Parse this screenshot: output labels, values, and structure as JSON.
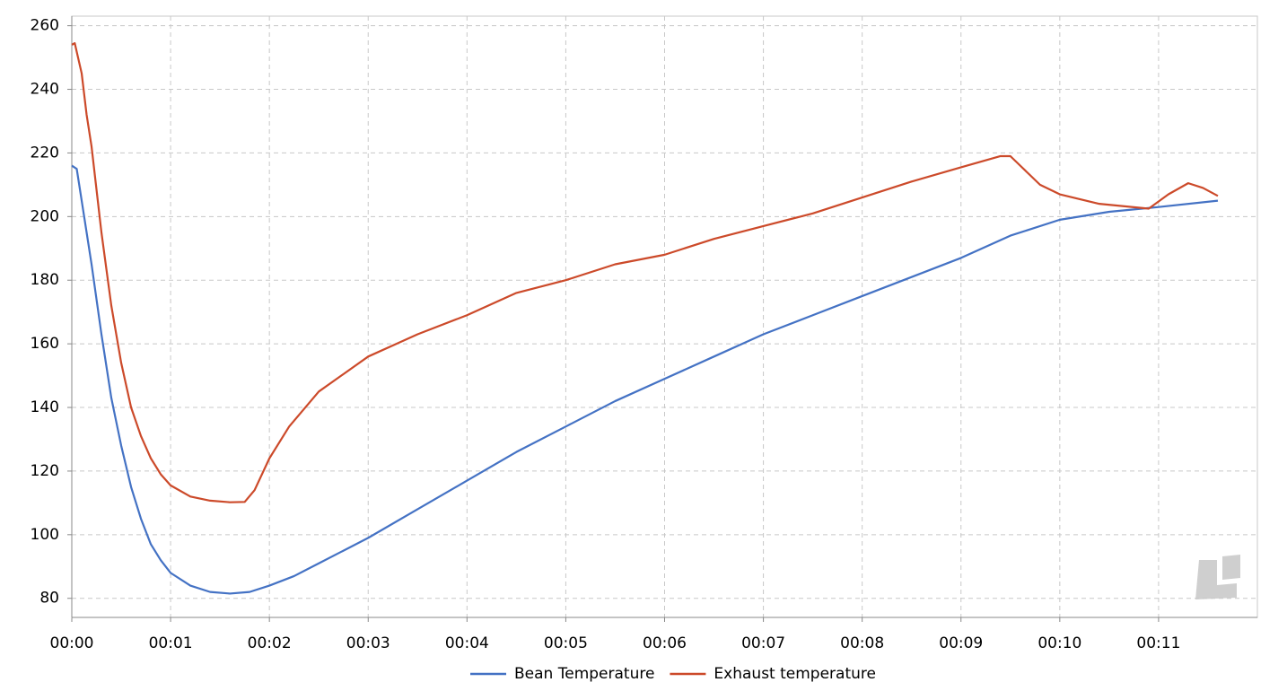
{
  "chart_data": {
    "type": "line",
    "xlim": [
      0,
      12
    ],
    "ylim": [
      74,
      263
    ],
    "xticks": [
      {
        "value": 0,
        "label": "00:00"
      },
      {
        "value": 1,
        "label": "00:01"
      },
      {
        "value": 2,
        "label": "00:02"
      },
      {
        "value": 3,
        "label": "00:03"
      },
      {
        "value": 4,
        "label": "00:04"
      },
      {
        "value": 5,
        "label": "00:05"
      },
      {
        "value": 6,
        "label": "00:06"
      },
      {
        "value": 7,
        "label": "00:07"
      },
      {
        "value": 8,
        "label": "00:08"
      },
      {
        "value": 9,
        "label": "00:09"
      },
      {
        "value": 10,
        "label": "00:10"
      },
      {
        "value": 11,
        "label": "00:11"
      }
    ],
    "yticks": [
      80,
      100,
      120,
      140,
      160,
      180,
      200,
      220,
      240,
      260
    ],
    "grid": true,
    "legend": "bottom",
    "series": [
      {
        "name": "Bean Temperature",
        "color": "#4472c4",
        "x": [
          0,
          0.05,
          0.1,
          0.2,
          0.3,
          0.4,
          0.5,
          0.6,
          0.7,
          0.8,
          0.9,
          1.0,
          1.2,
          1.4,
          1.6,
          1.8,
          2.0,
          2.25,
          2.5,
          3.0,
          3.5,
          4.0,
          4.5,
          5.0,
          5.5,
          6.0,
          6.5,
          7.0,
          7.5,
          8.0,
          8.5,
          9.0,
          9.5,
          10.0,
          10.5,
          11.0,
          11.6
        ],
        "values": [
          216,
          215,
          205,
          185,
          163,
          143,
          128,
          115,
          105,
          97,
          92,
          88,
          84,
          82,
          81.5,
          82,
          84,
          87,
          91,
          99,
          108,
          117,
          126,
          134,
          142,
          149,
          156,
          163,
          169,
          175,
          181,
          187,
          194,
          199,
          201.5,
          203,
          205
        ]
      },
      {
        "name": "Exhaust temperature",
        "color": "#cc4a2a",
        "x": [
          0,
          0.03,
          0.1,
          0.15,
          0.2,
          0.3,
          0.4,
          0.5,
          0.6,
          0.7,
          0.8,
          0.9,
          1.0,
          1.2,
          1.4,
          1.6,
          1.75,
          1.85,
          2.0,
          2.2,
          2.5,
          3.0,
          3.5,
          4.0,
          4.5,
          5.0,
          5.5,
          6.0,
          6.5,
          7.0,
          7.5,
          8.0,
          8.5,
          9.0,
          9.4,
          9.5,
          9.6,
          9.8,
          10.0,
          10.4,
          10.9,
          11.1,
          11.3,
          11.45,
          11.6
        ],
        "values": [
          254,
          254.5,
          245,
          232,
          222,
          195,
          172,
          154,
          140,
          131,
          124,
          119,
          115.5,
          112,
          110.7,
          110.2,
          110.3,
          114,
          124,
          134,
          145,
          156,
          163,
          169,
          176,
          180,
          185,
          188,
          193,
          197,
          201,
          206,
          211,
          215.5,
          219,
          219,
          216,
          210,
          207,
          204,
          202.5,
          207,
          210.5,
          209,
          206.5
        ]
      }
    ]
  }
}
